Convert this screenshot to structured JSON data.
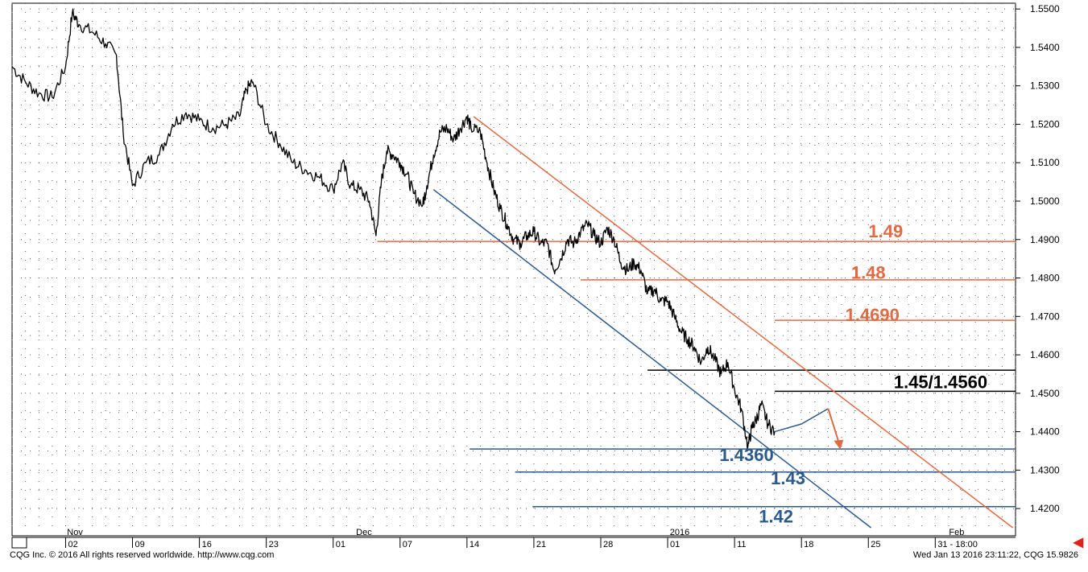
{
  "chart_data": {
    "type": "line",
    "title": "",
    "xlabel": "",
    "ylabel": "",
    "ylim": [
      1.415,
      1.5515
    ],
    "xlim": [
      0,
      75
    ],
    "grid": true,
    "y_ticks": [
      "1.4200",
      "1.4300",
      "1.4400",
      "1.4500",
      "1.4600",
      "1.4700",
      "1.4800",
      "1.4900",
      "1.5000",
      "1.5100",
      "1.5200",
      "1.5300",
      "1.5400",
      "1.5500"
    ],
    "x_ticks": [
      {
        "x": 4,
        "label": "02"
      },
      {
        "x": 9,
        "label": "09"
      },
      {
        "x": 14,
        "label": "16"
      },
      {
        "x": 19,
        "label": "23"
      },
      {
        "x": 24,
        "label": "01"
      },
      {
        "x": 29,
        "label": "07"
      },
      {
        "x": 34,
        "label": "14"
      },
      {
        "x": 39,
        "label": "21"
      },
      {
        "x": 44,
        "label": "28"
      },
      {
        "x": 49,
        "label": "01"
      },
      {
        "x": 54,
        "label": "11"
      },
      {
        "x": 59,
        "label": "18"
      },
      {
        "x": 64,
        "label": "25"
      },
      {
        "x": 69,
        "label": "31 - 18:00"
      }
    ],
    "period_labels": [
      {
        "x": 4.7,
        "label": "Nov"
      },
      {
        "x": 26.3,
        "label": "Dec"
      },
      {
        "x": 49.9,
        "label": "2016"
      },
      {
        "x": 70.6,
        "label": "Feb"
      }
    ],
    "series": [
      {
        "x": [
          0,
          1,
          2,
          3,
          4,
          4.5,
          5,
          6,
          7,
          7.8,
          8.3,
          9,
          10,
          11,
          12,
          13,
          14,
          15,
          16,
          17,
          17.5,
          18,
          19,
          20,
          21,
          22,
          23,
          24,
          24.7,
          25.3,
          26,
          26.7,
          27.2,
          27.6,
          28,
          28.5,
          29,
          29.5,
          30,
          30.7,
          31,
          31.5,
          32,
          32.5,
          33,
          33.5,
          34,
          34.3,
          35,
          35.5,
          36,
          36.5,
          37,
          37.5,
          38,
          38.5,
          39,
          39.5,
          40,
          40.5,
          41,
          41.5,
          42,
          42.5,
          43,
          43.5,
          44,
          44.5,
          45,
          45.5,
          46,
          46.5,
          47,
          47.5,
          48,
          48.5,
          49,
          49.5,
          50,
          50.5,
          51,
          51.5,
          52,
          52.5,
          53,
          53.5,
          54,
          54.5,
          55,
          55.3,
          55.6,
          56,
          56.5,
          57
        ],
        "values": [
          1.535,
          1.531,
          1.528,
          1.527,
          1.535,
          1.549,
          1.546,
          1.544,
          1.541,
          1.538,
          1.518,
          1.504,
          1.51,
          1.512,
          1.52,
          1.523,
          1.521,
          1.519,
          1.52,
          1.522,
          1.529,
          1.531,
          1.52,
          1.515,
          1.51,
          1.508,
          1.506,
          1.503,
          1.51,
          1.504,
          1.503,
          1.5,
          1.491,
          1.505,
          1.513,
          1.512,
          1.51,
          1.507,
          1.502,
          1.499,
          1.504,
          1.512,
          1.518,
          1.519,
          1.516,
          1.519,
          1.522,
          1.519,
          1.518,
          1.51,
          1.503,
          1.498,
          1.494,
          1.49,
          1.489,
          1.491,
          1.492,
          1.489,
          1.489,
          1.482,
          1.485,
          1.49,
          1.489,
          1.492,
          1.494,
          1.491,
          1.489,
          1.493,
          1.49,
          1.484,
          1.482,
          1.484,
          1.482,
          1.476,
          1.477,
          1.474,
          1.474,
          1.47,
          1.466,
          1.464,
          1.462,
          1.458,
          1.462,
          1.459,
          1.455,
          1.458,
          1.451,
          1.446,
          1.436,
          1.441,
          1.443,
          1.447,
          1.442,
          1.44
        ]
      }
    ],
    "projection": {
      "x": [
        57,
        59,
        61,
        61.9
      ],
      "values": [
        1.44,
        1.442,
        1.446,
        1.436
      ]
    },
    "trendlines": [
      {
        "color": "#e26a42",
        "x": [
          34.5,
          74.8
        ],
        "values": [
          1.522,
          1.415
        ]
      },
      {
        "color": "#2d5a8e",
        "x": [
          31.5,
          64.2
        ],
        "values": [
          1.503,
          1.415
        ]
      }
    ],
    "levels": [
      {
        "label": "1.49",
        "value": 1.4895,
        "x_start": 27.3,
        "color": "#e26a42",
        "label_x": 65.3,
        "label_value": 1.4922
      },
      {
        "label": "1.48",
        "value": 1.4795,
        "x_start": 42.5,
        "color": "#e26a42",
        "label_x": 64,
        "label_value": 1.4815
      },
      {
        "label": "1.4690",
        "value": 1.469,
        "x_start": 57,
        "color": "#e26a42",
        "label_x": 64.3,
        "label_value": 1.4705
      },
      {
        "label": "",
        "value": 1.456,
        "x_start": 47.5,
        "color": "#000000"
      },
      {
        "label": "1.45/1.4560",
        "value": 1.4505,
        "x_start": 57,
        "color": "#000000",
        "label_x": 69.4,
        "label_value": 1.453
      },
      {
        "label": "1.4360",
        "value": 1.4355,
        "x_start": 34.2,
        "color": "#2d5a8e",
        "label_x": 54.9,
        "label_value": 1.434
      },
      {
        "label": "1.43",
        "value": 1.4295,
        "x_start": 37.6,
        "color": "#2d5a8e",
        "label_x": 58,
        "label_value": 1.428
      },
      {
        "label": "1.42",
        "value": 1.4205,
        "x_start": 38.9,
        "color": "#2d5a8e",
        "label_x": 57.1,
        "label_value": 1.418
      }
    ]
  },
  "footer": {
    "left": "CQG Inc. © 2016 All rights reserved worldwide. http://www.cqg.com",
    "right": "Wed Jan 13 2016 23:11:22, CQG 15.9826"
  },
  "colors": {
    "price": "#000000",
    "orange": "#e26a42",
    "blue": "#2d5a8e",
    "grid": "#5a5a5a"
  },
  "icons": {
    "scroll_arrow": "left-arrow-icon"
  }
}
